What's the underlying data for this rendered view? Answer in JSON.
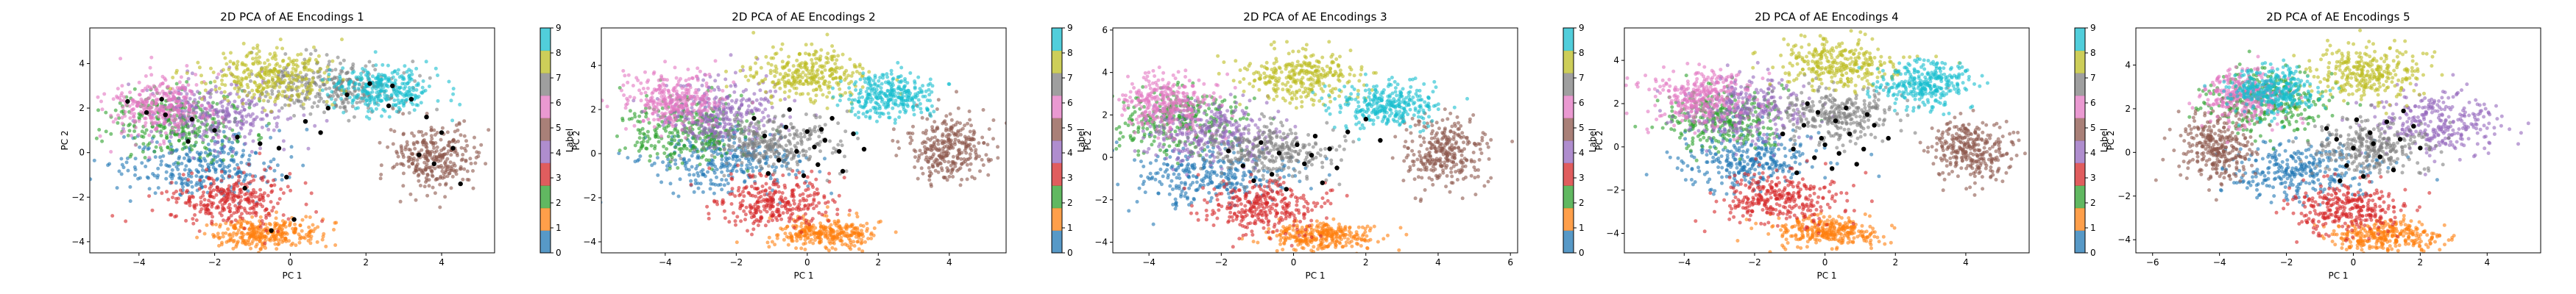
{
  "figure": {
    "background": "#ffffff"
  },
  "colormap": {
    "name": "tab10",
    "colors": [
      "#1f77b4",
      "#ff7f0e",
      "#2ca02c",
      "#d62728",
      "#9467bd",
      "#8c564b",
      "#e377c2",
      "#7f7f7f",
      "#bcbd22",
      "#17becf"
    ],
    "label_ticks": [
      "0",
      "1",
      "2",
      "3",
      "4",
      "5",
      "6",
      "7",
      "8",
      "9"
    ],
    "label_title": "Label"
  },
  "chart_data": [
    {
      "type": "scatter",
      "title": "2D PCA of AE Encodings 1",
      "xlabel": "PC 1",
      "ylabel": "PC 2",
      "xlim": [
        -5.3,
        5.4
      ],
      "ylim": [
        -4.5,
        5.6
      ],
      "xticks": [
        -4,
        -2,
        0,
        2,
        4
      ],
      "yticks": [
        -4,
        -2,
        0,
        2,
        4
      ],
      "grid": false,
      "legend": "colorbar-right",
      "cluster_centers": [
        {
          "label": "0",
          "x": -2.4,
          "y": -0.6
        },
        {
          "label": "1",
          "x": -0.7,
          "y": -3.6
        },
        {
          "label": "2",
          "x": -3.0,
          "y": 1.3
        },
        {
          "label": "3",
          "x": -1.6,
          "y": -2.1
        },
        {
          "label": "4",
          "x": -2.0,
          "y": 1.7
        },
        {
          "label": "5",
          "x": 3.8,
          "y": -0.3
        },
        {
          "label": "6",
          "x": -3.5,
          "y": 2.0
        },
        {
          "label": "7",
          "x": 1.0,
          "y": 3.0
        },
        {
          "label": "8",
          "x": -0.6,
          "y": 3.4
        },
        {
          "label": "9",
          "x": 2.4,
          "y": 2.9
        }
      ],
      "black_points": [
        [
          -4.3,
          2.3
        ],
        [
          -3.8,
          1.8
        ],
        [
          -3.3,
          1.7
        ],
        [
          -2.6,
          1.5
        ],
        [
          -2.0,
          1.0
        ],
        [
          -1.4,
          0.7
        ],
        [
          -0.8,
          0.4
        ],
        [
          -0.3,
          0.2
        ],
        [
          0.4,
          1.4
        ],
        [
          1.0,
          2.0
        ],
        [
          1.5,
          2.6
        ],
        [
          2.1,
          3.1
        ],
        [
          2.7,
          3.0
        ],
        [
          3.2,
          2.4
        ],
        [
          3.6,
          1.6
        ],
        [
          4.0,
          0.9
        ],
        [
          4.3,
          0.2
        ],
        [
          3.8,
          -0.5
        ],
        [
          4.5,
          -1.4
        ],
        [
          -0.5,
          -3.5
        ],
        [
          0.1,
          -3.0
        ],
        [
          -1.2,
          -1.6
        ],
        [
          -0.1,
          -1.1
        ],
        [
          0.8,
          0.9
        ],
        [
          -2.7,
          0.5
        ],
        [
          -3.4,
          2.4
        ],
        [
          3.4,
          -0.1
        ],
        [
          2.6,
          2.1
        ]
      ]
    },
    {
      "type": "scatter",
      "title": "2D PCA of AE Encodings 2",
      "xlabel": "PC 1",
      "ylabel": "PC 2",
      "xlim": [
        -5.8,
        5.6
      ],
      "ylim": [
        -4.5,
        5.7
      ],
      "xticks": [
        -4,
        -2,
        0,
        2,
        4
      ],
      "yticks": [
        -4,
        -2,
        0,
        2,
        4
      ],
      "grid": false,
      "legend": "colorbar-right",
      "cluster_centers": [
        {
          "label": "0",
          "x": -2.4,
          "y": -0.4
        },
        {
          "label": "1",
          "x": 0.5,
          "y": -3.6
        },
        {
          "label": "2",
          "x": -3.4,
          "y": 1.0
        },
        {
          "label": "3",
          "x": -0.9,
          "y": -2.2
        },
        {
          "label": "4",
          "x": -2.5,
          "y": 1.9
        },
        {
          "label": "5",
          "x": 4.0,
          "y": 0.3
        },
        {
          "label": "6",
          "x": -3.8,
          "y": 2.4
        },
        {
          "label": "7",
          "x": -1.0,
          "y": 0.5
        },
        {
          "label": "8",
          "x": 0.0,
          "y": 3.6
        },
        {
          "label": "9",
          "x": 2.3,
          "y": 2.6
        }
      ],
      "black_points": [
        [
          -1.2,
          0.8
        ],
        [
          -0.6,
          1.2
        ],
        [
          0.0,
          1.0
        ],
        [
          0.5,
          0.6
        ],
        [
          0.9,
          0.1
        ],
        [
          -0.3,
          0.1
        ],
        [
          0.3,
          -0.5
        ],
        [
          -0.8,
          -0.3
        ],
        [
          1.3,
          0.9
        ],
        [
          -1.5,
          1.6
        ],
        [
          0.7,
          1.6
        ],
        [
          -0.1,
          -1.0
        ],
        [
          1.0,
          -0.8
        ],
        [
          -0.5,
          2.0
        ],
        [
          0.2,
          0.3
        ],
        [
          1.6,
          0.2
        ],
        [
          -1.1,
          -0.9
        ],
        [
          0.4,
          1.1
        ]
      ]
    },
    {
      "type": "scatter",
      "title": "2D PCA of AE Encodings 3",
      "xlabel": "PC 1",
      "ylabel": "PC 2",
      "xlim": [
        -5.0,
        6.2
      ],
      "ylim": [
        -4.5,
        6.1
      ],
      "xticks": [
        -4,
        -2,
        0,
        2,
        4,
        6
      ],
      "yticks": [
        -4,
        -2,
        0,
        2,
        4,
        6
      ],
      "grid": false,
      "legend": "colorbar-right",
      "cluster_centers": [
        {
          "label": "0",
          "x": -2.3,
          "y": -0.8
        },
        {
          "label": "1",
          "x": 0.8,
          "y": -3.7
        },
        {
          "label": "2",
          "x": -3.2,
          "y": 1.8
        },
        {
          "label": "3",
          "x": -0.8,
          "y": -2.4
        },
        {
          "label": "4",
          "x": -2.3,
          "y": 1.2
        },
        {
          "label": "5",
          "x": 4.2,
          "y": 0.2
        },
        {
          "label": "6",
          "x": -3.5,
          "y": 2.6
        },
        {
          "label": "7",
          "x": -0.8,
          "y": 0.3
        },
        {
          "label": "8",
          "x": 0.2,
          "y": 3.8
        },
        {
          "label": "9",
          "x": 2.6,
          "y": 2.5
        }
      ],
      "black_points": [
        [
          -0.9,
          0.7
        ],
        [
          -0.4,
          0.2
        ],
        [
          0.1,
          0.6
        ],
        [
          0.6,
          1.0
        ],
        [
          1.0,
          0.4
        ],
        [
          1.5,
          1.2
        ],
        [
          2.0,
          1.8
        ],
        [
          -1.4,
          -0.4
        ],
        [
          -0.6,
          -0.8
        ],
        [
          0.3,
          -0.3
        ],
        [
          0.8,
          -1.2
        ],
        [
          -1.8,
          0.3
        ],
        [
          -0.2,
          -1.5
        ],
        [
          1.2,
          -0.5
        ],
        [
          2.4,
          0.8
        ],
        [
          -1.1,
          -1.1
        ],
        [
          0.5,
          0.1
        ]
      ]
    },
    {
      "type": "scatter",
      "title": "2D PCA of AE Encodings 4",
      "xlabel": "PC 1",
      "ylabel": "PC 2",
      "xlim": [
        -5.7,
        5.8
      ],
      "ylim": [
        -4.9,
        5.5
      ],
      "xticks": [
        -4,
        -2,
        0,
        2,
        4
      ],
      "yticks": [
        -4,
        -2,
        0,
        2,
        4
      ],
      "grid": false,
      "legend": "colorbar-right",
      "cluster_centers": [
        {
          "label": "0",
          "x": -2.2,
          "y": -0.6
        },
        {
          "label": "1",
          "x": 0.1,
          "y": -3.9
        },
        {
          "label": "2",
          "x": -3.0,
          "y": 1.3
        },
        {
          "label": "3",
          "x": -1.2,
          "y": -2.4
        },
        {
          "label": "4",
          "x": -2.3,
          "y": 1.7
        },
        {
          "label": "5",
          "x": 4.1,
          "y": -0.2
        },
        {
          "label": "6",
          "x": -3.5,
          "y": 2.3
        },
        {
          "label": "7",
          "x": 0.3,
          "y": 1.5
        },
        {
          "label": "8",
          "x": 0.4,
          "y": 3.8
        },
        {
          "label": "9",
          "x": 2.8,
          "y": 2.9
        }
      ],
      "black_points": [
        [
          -0.6,
          1.0
        ],
        [
          -0.1,
          0.4
        ],
        [
          0.3,
          1.2
        ],
        [
          0.7,
          0.6
        ],
        [
          1.1,
          -0.1
        ],
        [
          -0.3,
          -0.5
        ],
        [
          0.2,
          -1.0
        ],
        [
          -0.9,
          -0.1
        ],
        [
          0.6,
          1.8
        ],
        [
          1.4,
          1.0
        ],
        [
          -0.5,
          2.0
        ],
        [
          0.0,
          0.1
        ],
        [
          -1.2,
          0.6
        ],
        [
          0.9,
          -0.8
        ],
        [
          1.8,
          0.4
        ],
        [
          -0.2,
          1.6
        ],
        [
          0.4,
          -0.3
        ],
        [
          -0.8,
          -1.2
        ],
        [
          1.2,
          1.5
        ]
      ]
    },
    {
      "type": "scatter",
      "title": "2D PCA of AE Encodings 5",
      "xlabel": "PC 1",
      "ylabel": "PC 2",
      "xlim": [
        -6.5,
        5.6
      ],
      "ylim": [
        -4.6,
        5.7
      ],
      "xticks": [
        -6,
        -4,
        -2,
        0,
        2,
        4
      ],
      "yticks": [
        -4,
        -2,
        0,
        2,
        4
      ],
      "grid": false,
      "legend": "colorbar-right",
      "cluster_centers": [
        {
          "label": "0",
          "x": -1.6,
          "y": -0.9
        },
        {
          "label": "1",
          "x": 0.9,
          "y": -3.8
        },
        {
          "label": "2",
          "x": -2.6,
          "y": 2.3
        },
        {
          "label": "3",
          "x": -0.2,
          "y": -2.6
        },
        {
          "label": "4",
          "x": 2.5,
          "y": 1.3
        },
        {
          "label": "5",
          "x": -4.1,
          "y": 0.2
        },
        {
          "label": "6",
          "x": -3.2,
          "y": 2.6
        },
        {
          "label": "7",
          "x": 0.5,
          "y": 0.3
        },
        {
          "label": "8",
          "x": 0.5,
          "y": 3.6
        },
        {
          "label": "9",
          "x": -2.3,
          "y": 2.8
        }
      ],
      "black_points": [
        [
          -0.5,
          0.6
        ],
        [
          0.0,
          0.2
        ],
        [
          0.5,
          0.9
        ],
        [
          1.0,
          1.4
        ],
        [
          1.4,
          0.6
        ],
        [
          0.8,
          -0.2
        ],
        [
          -0.2,
          -0.6
        ],
        [
          0.3,
          -1.1
        ],
        [
          1.8,
          1.2
        ],
        [
          -0.8,
          1.1
        ],
        [
          1.2,
          -0.8
        ],
        [
          0.1,
          1.5
        ],
        [
          2.0,
          0.2
        ],
        [
          -0.4,
          -1.3
        ],
        [
          0.6,
          0.4
        ],
        [
          1.5,
          1.9
        ]
      ]
    }
  ]
}
